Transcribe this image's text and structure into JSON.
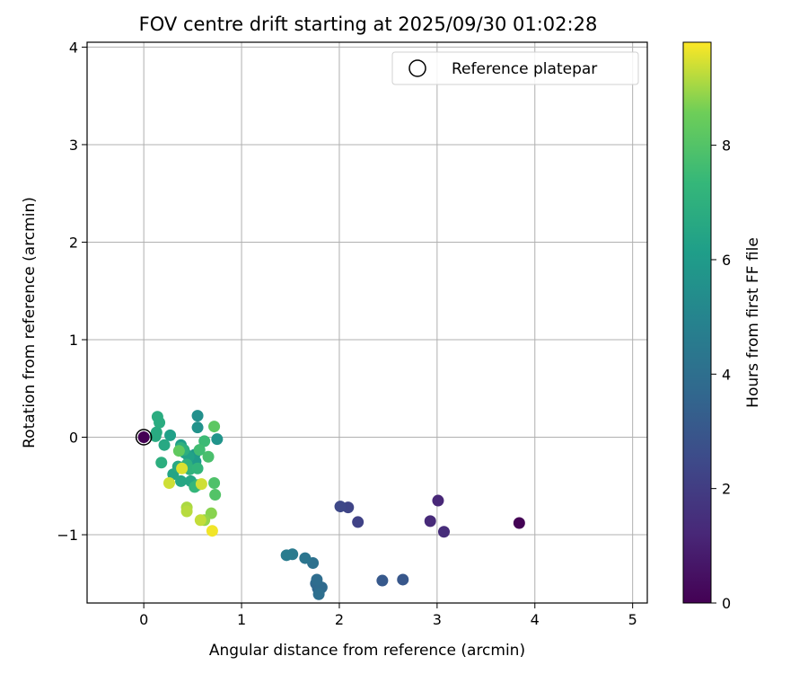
{
  "chart_data": {
    "type": "scatter",
    "title": "FOV centre drift starting at 2025/09/30 01:02:28",
    "xlabel": "Angular distance from reference (arcmin)",
    "ylabel": "Rotation from reference (arcmin)",
    "xlim": [
      -0.58,
      5.15
    ],
    "ylim": [
      -1.7,
      4.05
    ],
    "xticks": [
      0,
      1,
      2,
      3,
      4,
      5
    ],
    "xtick_labels": [
      "0",
      "1",
      "2",
      "3",
      "4",
      "5"
    ],
    "yticks": [
      -1,
      0,
      1,
      2,
      3,
      4
    ],
    "ytick_labels": [
      "−1",
      "0",
      "1",
      "2",
      "3",
      "4"
    ],
    "grid": true,
    "legend": {
      "position": "top-right",
      "label": "Reference platepar"
    },
    "reference": {
      "x": 0,
      "y": 0
    },
    "colorbar": {
      "label": "Hours from first FF file",
      "range": [
        0,
        9.8
      ],
      "ticks": [
        0,
        2,
        4,
        6,
        8
      ],
      "tick_labels": [
        "0",
        "2",
        "4",
        "6",
        "8"
      ]
    },
    "points": [
      {
        "x": 0.0,
        "y": 0.0,
        "c": 0.0
      },
      {
        "x": 3.84,
        "y": -0.88,
        "c": 0.05
      },
      {
        "x": 3.01,
        "y": -0.65,
        "c": 1.2
      },
      {
        "x": 2.93,
        "y": -0.86,
        "c": 1.3
      },
      {
        "x": 3.07,
        "y": -0.97,
        "c": 1.4
      },
      {
        "x": 2.19,
        "y": -0.87,
        "c": 2.2
      },
      {
        "x": 2.09,
        "y": -0.72,
        "c": 2.3
      },
      {
        "x": 2.01,
        "y": -0.71,
        "c": 2.4
      },
      {
        "x": 2.65,
        "y": -1.46,
        "c": 3.0
      },
      {
        "x": 2.44,
        "y": -1.47,
        "c": 3.1
      },
      {
        "x": 1.78,
        "y": -1.55,
        "c": 3.6
      },
      {
        "x": 1.76,
        "y": -1.5,
        "c": 3.7
      },
      {
        "x": 1.8,
        "y": -1.56,
        "c": 3.8
      },
      {
        "x": 1.82,
        "y": -1.54,
        "c": 3.8
      },
      {
        "x": 1.77,
        "y": -1.46,
        "c": 3.9
      },
      {
        "x": 1.79,
        "y": -1.61,
        "c": 4.0
      },
      {
        "x": 1.73,
        "y": -1.29,
        "c": 4.1
      },
      {
        "x": 1.65,
        "y": -1.24,
        "c": 4.3
      },
      {
        "x": 1.52,
        "y": -1.2,
        "c": 4.5
      },
      {
        "x": 1.46,
        "y": -1.21,
        "c": 4.6
      },
      {
        "x": 0.55,
        "y": 0.22,
        "c": 5.5
      },
      {
        "x": 0.55,
        "y": 0.1,
        "c": 5.6
      },
      {
        "x": 0.75,
        "y": -0.02,
        "c": 5.7
      },
      {
        "x": 0.52,
        "y": -0.18,
        "c": 5.9
      },
      {
        "x": 0.53,
        "y": -0.25,
        "c": 6.0
      },
      {
        "x": 0.38,
        "y": -0.08,
        "c": 6.1
      },
      {
        "x": 0.27,
        "y": 0.02,
        "c": 6.2
      },
      {
        "x": 0.42,
        "y": -0.16,
        "c": 6.3
      },
      {
        "x": 0.46,
        "y": -0.2,
        "c": 6.3
      },
      {
        "x": 0.3,
        "y": -0.38,
        "c": 6.4
      },
      {
        "x": 0.48,
        "y": -0.45,
        "c": 6.5
      },
      {
        "x": 0.38,
        "y": -0.45,
        "c": 6.5
      },
      {
        "x": 0.21,
        "y": -0.08,
        "c": 6.6
      },
      {
        "x": 0.35,
        "y": -0.3,
        "c": 6.6
      },
      {
        "x": 0.13,
        "y": 0.05,
        "c": 6.7
      },
      {
        "x": 0.12,
        "y": 0.01,
        "c": 6.7
      },
      {
        "x": 0.16,
        "y": 0.15,
        "c": 6.8
      },
      {
        "x": 0.14,
        "y": 0.21,
        "c": 6.8
      },
      {
        "x": 0.18,
        "y": -0.26,
        "c": 6.9
      },
      {
        "x": 0.41,
        "y": -0.13,
        "c": 6.9
      },
      {
        "x": 0.38,
        "y": -0.11,
        "c": 7.0
      },
      {
        "x": 0.44,
        "y": -0.28,
        "c": 7.0
      },
      {
        "x": 0.47,
        "y": -0.33,
        "c": 7.1
      },
      {
        "x": 0.55,
        "y": -0.32,
        "c": 7.2
      },
      {
        "x": 0.52,
        "y": -0.51,
        "c": 7.3
      },
      {
        "x": 0.55,
        "y": -0.49,
        "c": 7.3
      },
      {
        "x": 0.62,
        "y": -0.04,
        "c": 7.5
      },
      {
        "x": 0.57,
        "y": -0.13,
        "c": 7.6
      },
      {
        "x": 0.66,
        "y": -0.2,
        "c": 7.8
      },
      {
        "x": 0.72,
        "y": -0.47,
        "c": 7.9
      },
      {
        "x": 0.73,
        "y": -0.59,
        "c": 8.0
      },
      {
        "x": 0.72,
        "y": 0.11,
        "c": 8.2
      },
      {
        "x": 0.36,
        "y": -0.14,
        "c": 8.3
      },
      {
        "x": 0.69,
        "y": -0.78,
        "c": 8.8
      },
      {
        "x": 0.62,
        "y": -0.85,
        "c": 8.9
      },
      {
        "x": 0.44,
        "y": -0.72,
        "c": 9.1
      },
      {
        "x": 0.44,
        "y": -0.76,
        "c": 9.2
      },
      {
        "x": 0.58,
        "y": -0.85,
        "c": 9.3
      },
      {
        "x": 0.59,
        "y": -0.48,
        "c": 9.4
      },
      {
        "x": 0.26,
        "y": -0.47,
        "c": 9.4
      },
      {
        "x": 0.39,
        "y": -0.32,
        "c": 9.5
      },
      {
        "x": 0.7,
        "y": -0.96,
        "c": 9.7
      }
    ]
  }
}
